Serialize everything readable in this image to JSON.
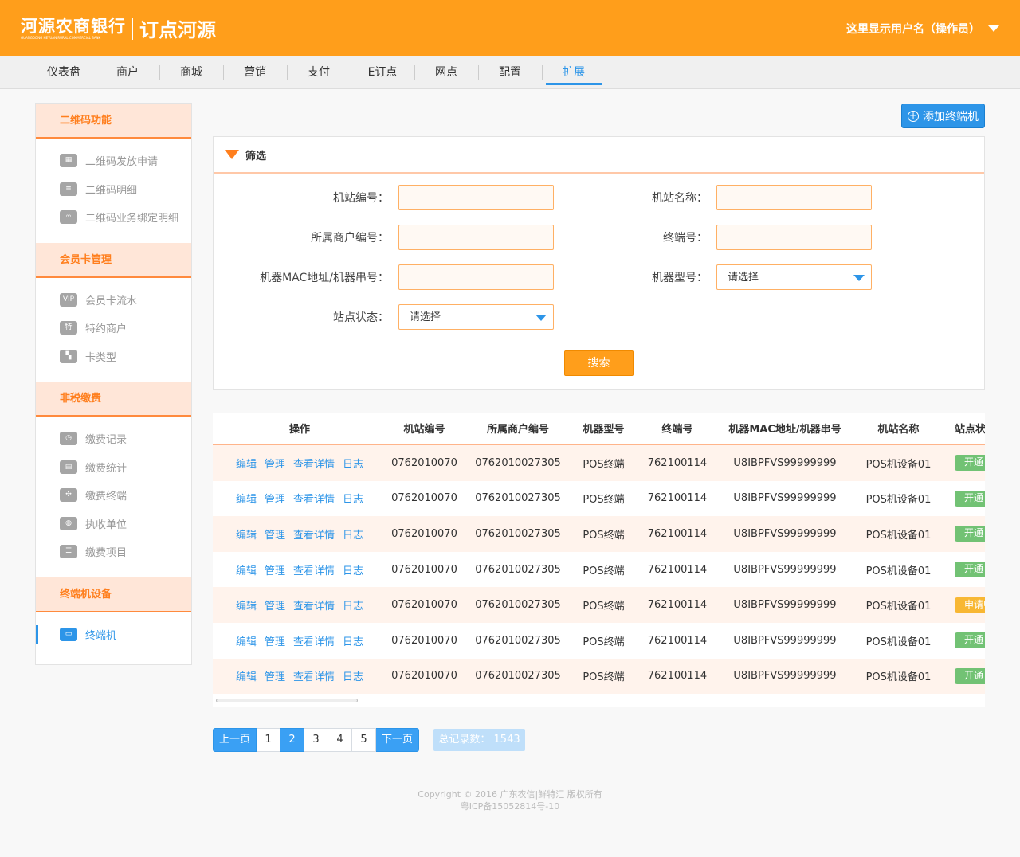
{
  "header": {
    "logo_cn": "河源农商银行",
    "logo_en": "GUANGDONG HEYUAN RURAL COMMERCIAL BANK",
    "brand": "订点河源",
    "user": "这里显示用户名（操作员）"
  },
  "nav": [
    "仪表盘",
    "商户",
    "商城",
    "营销",
    "支付",
    "E订点",
    "网点",
    "配置",
    "扩展"
  ],
  "nav_active": "扩展",
  "sidebar": [
    {
      "title": "二维码功能",
      "items": [
        {
          "label": "二维码发放申请",
          "icon": "qrcode-icon"
        },
        {
          "label": "二维码明细",
          "icon": "list-icon"
        },
        {
          "label": "二维码业务绑定明细",
          "icon": "link-icon"
        }
      ]
    },
    {
      "title": "会员卡管理",
      "items": [
        {
          "label": "会员卡流水",
          "icon": "vip-card-icon"
        },
        {
          "label": "特约商户",
          "icon": "special-merchant-icon"
        },
        {
          "label": "卡类型",
          "icon": "card-type-icon"
        }
      ]
    },
    {
      "title": "非税缴费",
      "items": [
        {
          "label": "缴费记录",
          "icon": "clock-icon"
        },
        {
          "label": "缴费统计",
          "icon": "stats-icon"
        },
        {
          "label": "缴费终端",
          "icon": "terminal-icon"
        },
        {
          "label": "执收单位",
          "icon": "unit-icon"
        },
        {
          "label": "缴费项目",
          "icon": "items-icon"
        }
      ]
    },
    {
      "title": "终端机设备",
      "items": [
        {
          "label": "终端机",
          "icon": "monitor-icon",
          "active": true
        }
      ]
    }
  ],
  "add_button": "添加终端机",
  "filter": {
    "title": "筛选",
    "fields": {
      "station_no": "机站编号：",
      "station_name": "机站名称：",
      "merchant_no": "所属商户编号：",
      "terminal_no": "终端号：",
      "mac": "机器MAC地址/机器串号：",
      "model": "机器型号：",
      "status": "站点状态："
    },
    "select_placeholder": "请选择",
    "search": "搜索"
  },
  "table": {
    "headers": [
      "操作",
      "机站编号",
      "所属商户编号",
      "机器型号",
      "终端号",
      "机器MAC地址/机器串号",
      "机站名称",
      "站点状态"
    ],
    "ops": [
      "编辑",
      "管理",
      "查看详情",
      "日志"
    ],
    "rows": [
      {
        "station_no": "0762010070",
        "merchant_no": "0762010027305",
        "model": "POS终端",
        "terminal": "762100114",
        "mac": "U8IBPFVS99999999",
        "name": "POS机设备01",
        "status": "开通"
      },
      {
        "station_no": "0762010070",
        "merchant_no": "0762010027305",
        "model": "POS终端",
        "terminal": "762100114",
        "mac": "U8IBPFVS99999999",
        "name": "POS机设备01",
        "status": "开通"
      },
      {
        "station_no": "0762010070",
        "merchant_no": "0762010027305",
        "model": "POS终端",
        "terminal": "762100114",
        "mac": "U8IBPFVS99999999",
        "name": "POS机设备01",
        "status": "开通"
      },
      {
        "station_no": "0762010070",
        "merchant_no": "0762010027305",
        "model": "POS终端",
        "terminal": "762100114",
        "mac": "U8IBPFVS99999999",
        "name": "POS机设备01",
        "status": "开通"
      },
      {
        "station_no": "0762010070",
        "merchant_no": "0762010027305",
        "model": "POS终端",
        "terminal": "762100114",
        "mac": "U8IBPFVS99999999",
        "name": "POS机设备01",
        "status": "申请中"
      },
      {
        "station_no": "0762010070",
        "merchant_no": "0762010027305",
        "model": "POS终端",
        "terminal": "762100114",
        "mac": "U8IBPFVS99999999",
        "name": "POS机设备01",
        "status": "开通"
      },
      {
        "station_no": "0762010070",
        "merchant_no": "0762010027305",
        "model": "POS终端",
        "terminal": "762100114",
        "mac": "U8IBPFVS99999999",
        "name": "POS机设备01",
        "status": "开通"
      }
    ]
  },
  "status_colors": {
    "开通": "#72c274",
    "申请中": "#f8b733"
  },
  "pager": {
    "prev": "上一页",
    "pages": [
      "1",
      "2",
      "3",
      "4",
      "5"
    ],
    "current": "2",
    "next": "下一页",
    "total": "总记录数： 1543"
  },
  "footer": {
    "line1": "Copyright © 2016 广东农信|鲜特汇 版权所有",
    "line2": "粤ICP备15052814号-10"
  }
}
